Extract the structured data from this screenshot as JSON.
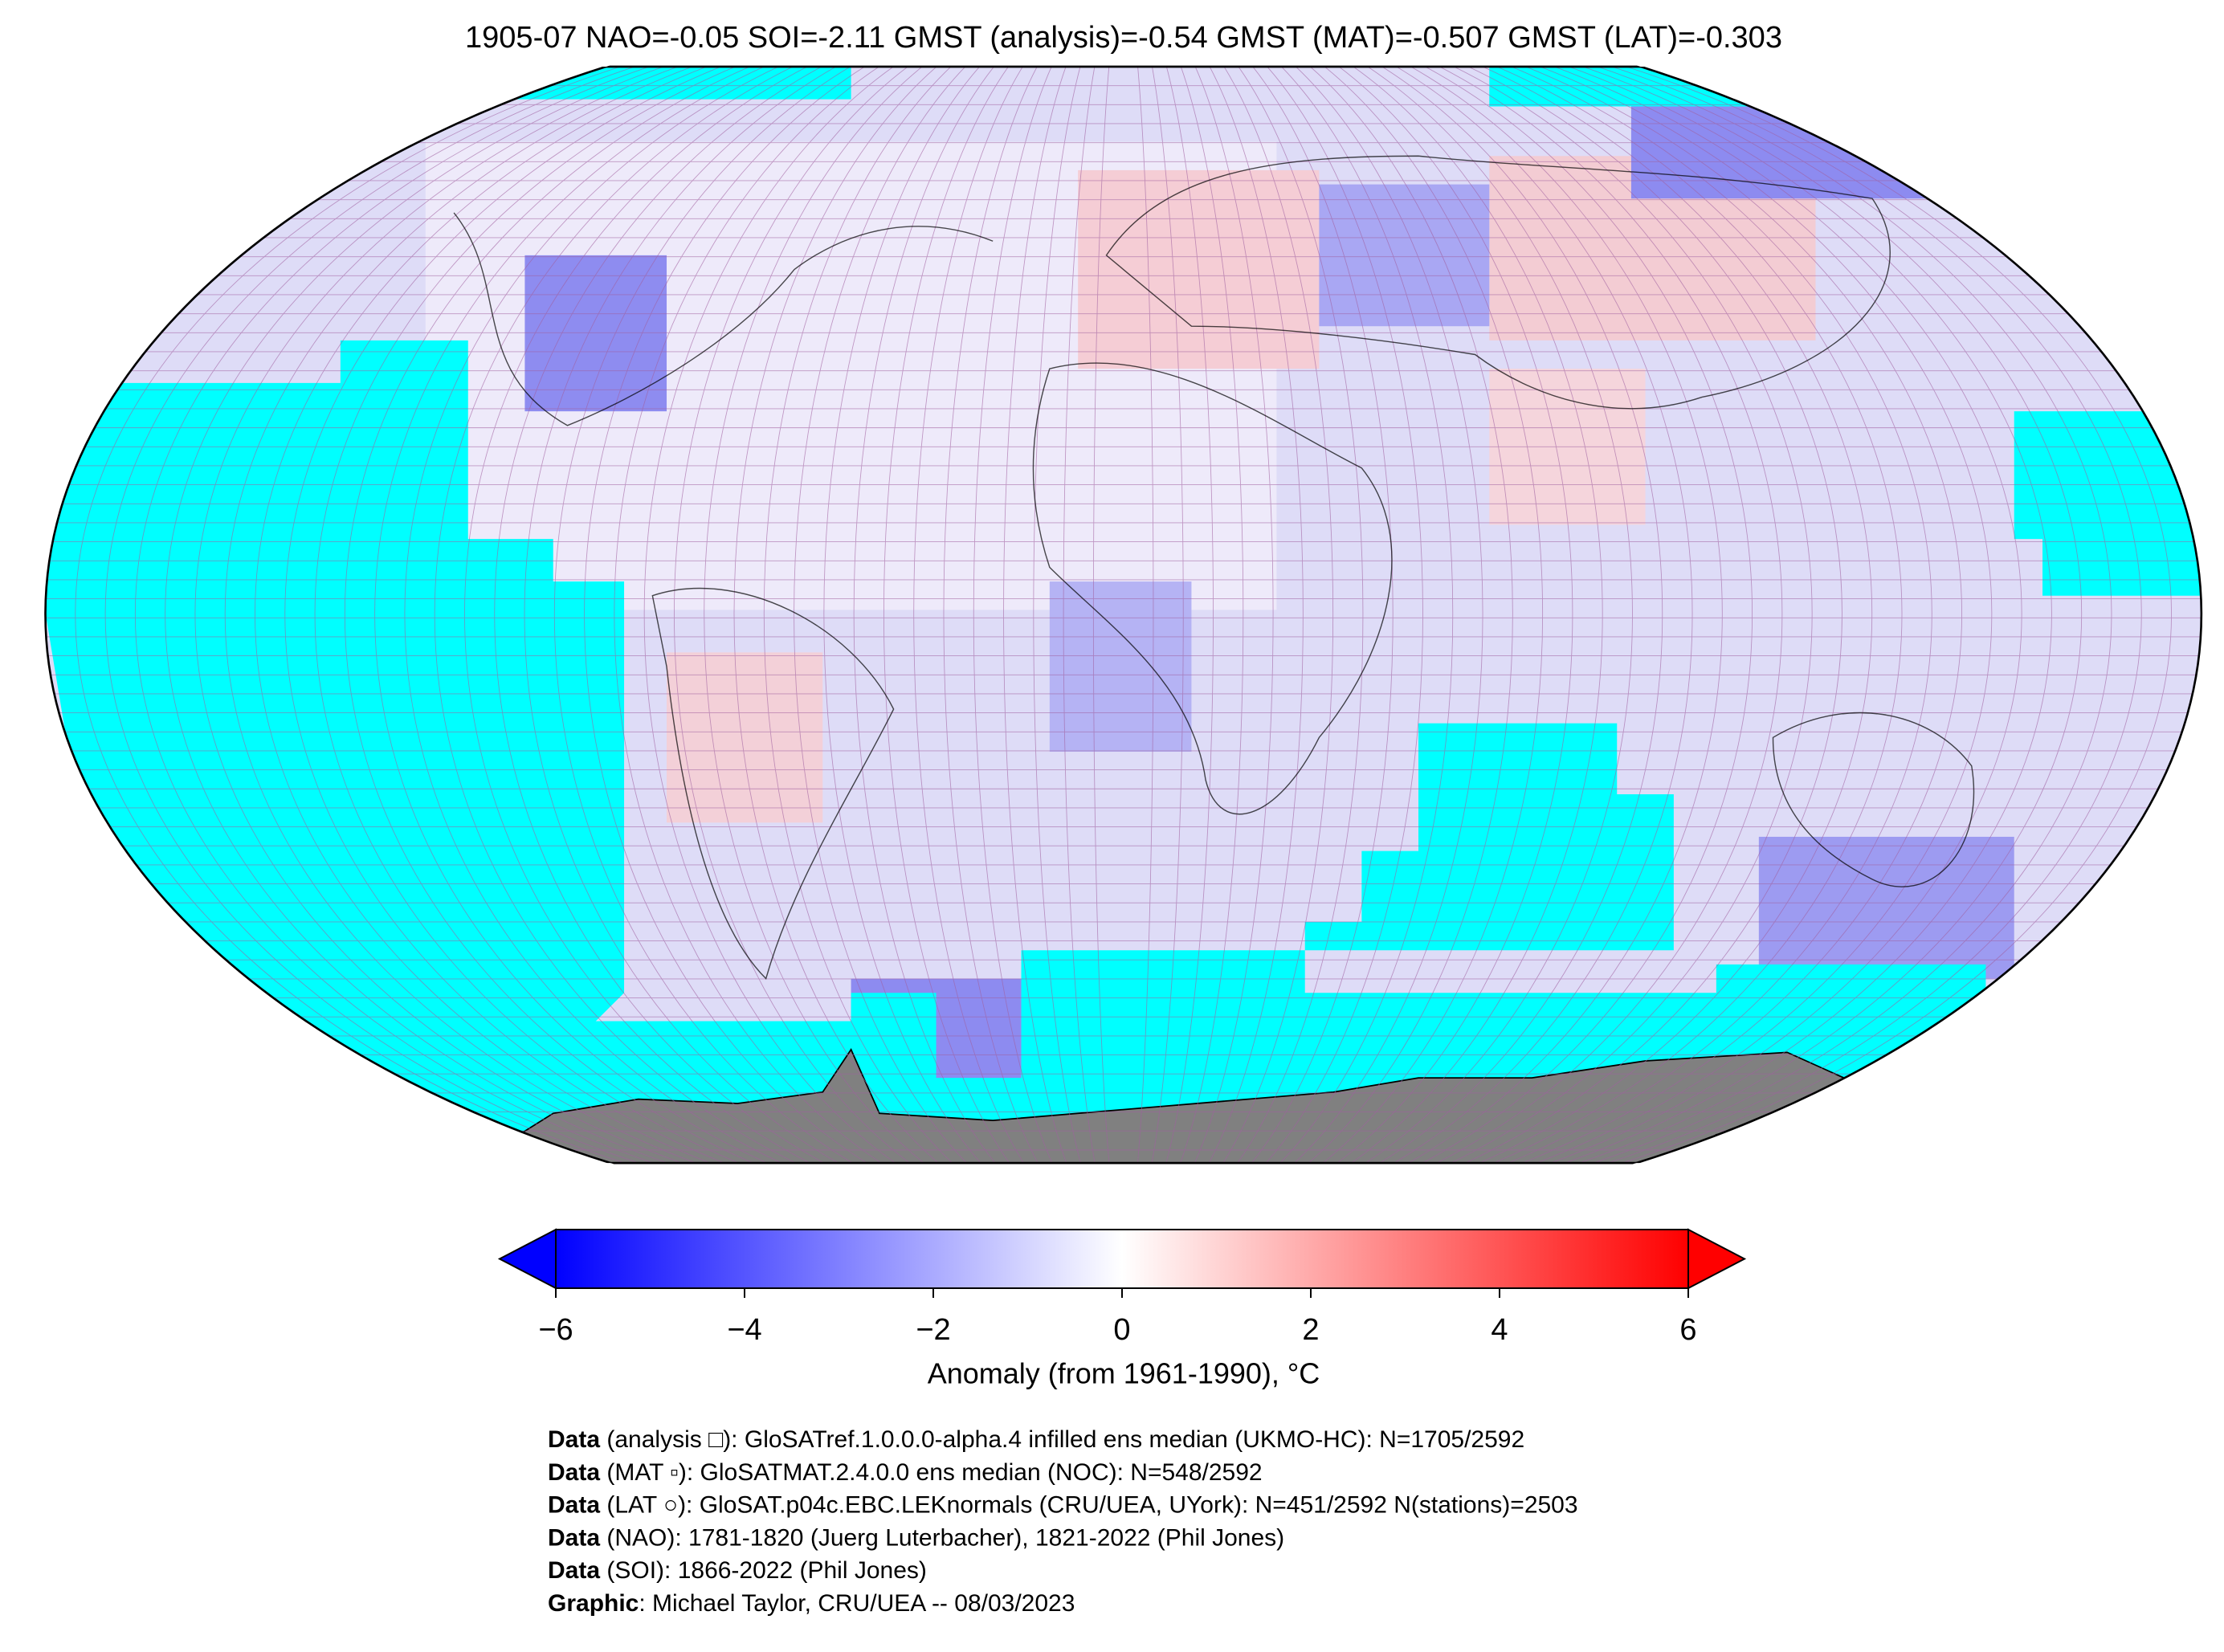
{
  "title": "1905-07 NAO=-0.05 SOI=-2.11 GMST (analysis)=-0.54 GMST (MAT)=-0.507 GMST (LAT)=-0.303",
  "colorbar": {
    "label": "Anomaly (from 1961-1990), °C",
    "lim": [
      -6,
      6
    ],
    "ticks": [
      {
        "value": -6,
        "label": "−6"
      },
      {
        "value": -4,
        "label": "−4"
      },
      {
        "value": -2,
        "label": "−2"
      },
      0,
      2,
      4,
      6
    ],
    "colors": [
      "#0000ff",
      "#ffffff",
      "#ff0000"
    ]
  },
  "credits": [
    {
      "label": "Data",
      "text": " (analysis □): GloSATref.1.0.0.0-alpha.4 infilled ens median (UKMO-HC): N=1705/2592"
    },
    {
      "label": "Data",
      "text": " (MAT ▫): GloSATMAT.2.4.0.0 ens median (NOC): N=548/2592"
    },
    {
      "label": "Data",
      "text": " (LAT ○): GloSAT.p04c.EBC.LEKnormals (CRU/UEA, UYork): N=451/2592 N(stations)=2503"
    },
    {
      "label": "Data",
      "text": " (NAO): 1781-1820 (Juerg Luterbacher), 1821-2022 (Phil Jones)"
    },
    {
      "label": "Data",
      "text": " (SOI): 1866-2022 (Phil Jones)"
    },
    {
      "label": "Graphic",
      "text": ": Michael Taylor, CRU/UEA -- 08/03/2023"
    }
  ]
}
